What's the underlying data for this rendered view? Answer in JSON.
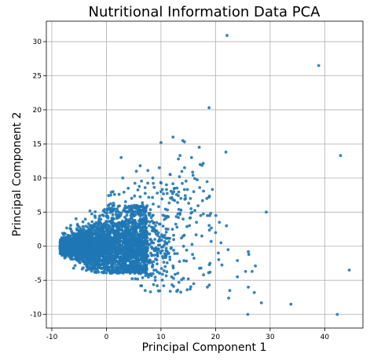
{
  "chart_data": {
    "type": "scatter",
    "title": "Nutritional Information Data PCA",
    "xlabel": "Principal Component 1",
    "ylabel": "Principal Component 2",
    "xlim": [
      -11,
      47
    ],
    "ylim": [
      -12,
      33
    ],
    "xticks": [
      -10,
      0,
      10,
      20,
      30,
      40
    ],
    "yticks": [
      -10,
      -5,
      0,
      5,
      10,
      15,
      20,
      25,
      30
    ],
    "grid": true,
    "point_color": "#1f77b4",
    "outliers": [
      [
        22.1,
        30.9
      ],
      [
        38.9,
        26.5
      ],
      [
        18.8,
        20.3
      ],
      [
        42.9,
        13.3
      ],
      [
        21.9,
        13.8
      ],
      [
        12.2,
        16.0
      ],
      [
        14.3,
        15.3
      ],
      [
        14.0,
        15.5
      ],
      [
        17.0,
        14.5
      ],
      [
        10.0,
        15.2
      ],
      [
        13.5,
        13.3
      ],
      [
        15.6,
        13.0
      ],
      [
        13.2,
        12.8
      ],
      [
        2.7,
        13.0
      ],
      [
        29.3,
        5.0
      ],
      [
        22.0,
        3.0
      ],
      [
        44.5,
        -3.5
      ],
      [
        42.3,
        -10.0
      ],
      [
        33.8,
        -8.5
      ],
      [
        28.4,
        -8.3
      ],
      [
        25.9,
        -10.0
      ],
      [
        26.0,
        -0.8
      ],
      [
        26.1,
        -1.2
      ],
      [
        27.3,
        -2.9
      ],
      [
        26.7,
        -3.7
      ],
      [
        25.5,
        -3.7
      ],
      [
        24.0,
        -2.1
      ],
      [
        27.1,
        -6.8
      ],
      [
        22.4,
        -7.6
      ],
      [
        22.6,
        -6.5
      ],
      [
        26.0,
        -6.0
      ],
      [
        24.0,
        -4.5
      ],
      [
        19.0,
        -3.8
      ],
      [
        18.5,
        -6.0
      ],
      [
        16.0,
        -5.5
      ],
      [
        11.7,
        -6.6
      ],
      [
        7.1,
        -6.5
      ],
      [
        14.8,
        -6.4
      ],
      [
        13.3,
        -5.3
      ],
      [
        12.3,
        -4.7
      ],
      [
        6.3,
        -5.8
      ],
      [
        9.3,
        -5.8
      ],
      [
        20.7,
        3.5
      ],
      [
        19.1,
        4.8
      ],
      [
        18.4,
        7.0
      ],
      [
        18.8,
        7.2
      ],
      [
        17.1,
        8.6
      ],
      [
        13.9,
        9.2
      ],
      [
        13.4,
        10.2
      ],
      [
        9.7,
        11.5
      ],
      [
        11.7,
        10.5
      ],
      [
        5.5,
        11.0
      ],
      [
        3.0,
        10.0
      ],
      [
        7.6,
        11.1
      ],
      [
        6.2,
        11.8
      ],
      [
        18.5,
        4.5
      ],
      [
        20.0,
        2.0
      ],
      [
        21.0,
        0.5
      ],
      [
        20.5,
        -1.0
      ],
      [
        19.0,
        -2.5
      ],
      [
        19.2,
        0.7
      ],
      [
        17.5,
        1.5
      ],
      [
        16.5,
        3.5
      ],
      [
        15.5,
        5.5
      ],
      [
        16.0,
        8.0
      ],
      [
        14.5,
        7.0
      ],
      [
        12.5,
        8.5
      ],
      [
        11.0,
        9.0
      ],
      [
        10.0,
        8.0
      ],
      [
        8.5,
        10.0
      ],
      [
        4.0,
        8.5
      ],
      [
        1.2,
        8.0
      ],
      [
        0.8,
        7.5
      ],
      [
        22.3,
        -0.5
      ],
      [
        17.8,
        -4.2
      ],
      [
        15.0,
        -4.8
      ],
      [
        10.5,
        -5.8
      ]
    ]
  }
}
